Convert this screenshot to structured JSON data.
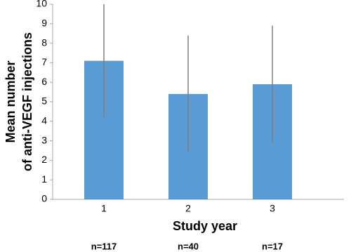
{
  "chart_data": {
    "type": "bar",
    "y_title": [
      "Mean number",
      "of anti-VEGF injections"
    ],
    "x_title": "Study year",
    "categories": [
      "1",
      "2",
      "3"
    ],
    "values": [
      7.1,
      5.4,
      5.9
    ],
    "errors": [
      2.9,
      3.0,
      3.0
    ],
    "sample_sizes": [
      "n=117",
      "n=40",
      "n=17"
    ],
    "color": "#5b9bd5",
    "error_color": "#7f7f7f",
    "ylim": [
      0,
      10
    ],
    "yticks": [
      0,
      1,
      2,
      3,
      4,
      5,
      6,
      7,
      8,
      9,
      10
    ],
    "grid": false
  }
}
